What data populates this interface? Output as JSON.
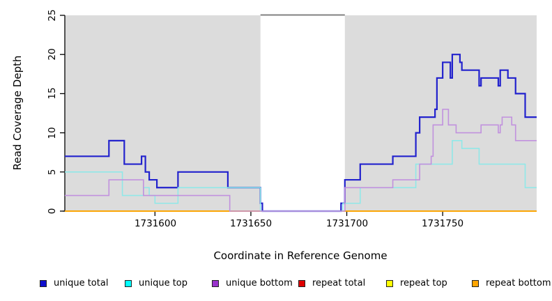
{
  "y_axis": {
    "title": "Read Coverage Depth",
    "tick_labels": [
      "0",
      "5",
      "10",
      "15",
      "20",
      "25"
    ],
    "tick_values": [
      0,
      5,
      10,
      15,
      20,
      25
    ]
  },
  "x_axis": {
    "title": "Coordinate in Reference Genome",
    "tick_labels": [
      "1731600",
      "1731650",
      "1731700",
      "1731750"
    ],
    "tick_values": [
      1731600,
      1731650,
      1731700,
      1731750
    ]
  },
  "legend": [
    {
      "label": "unique total",
      "color": "#0F0FCD"
    },
    {
      "label": "unique top",
      "color": "#00FFFF"
    },
    {
      "label": "unique bottom",
      "color": "#9932CC"
    },
    {
      "label": "repeat total",
      "color": "#DF0000"
    },
    {
      "label": "repeat top",
      "color": "#FFFF00"
    },
    {
      "label": "repeat bottom",
      "color": "#FFA500"
    }
  ],
  "colors": {
    "panel_shading": "#DCDCDC",
    "gap_top_border": "#808080",
    "axis": "#000000"
  },
  "chart_data": {
    "type": "line",
    "subtype": "step-coverage",
    "title": "",
    "xlabel": "Coordinate in Reference Genome",
    "ylabel": "Read Coverage Depth",
    "x_range": [
      1731553,
      1731799
    ],
    "y_range": [
      0,
      25
    ],
    "grid": false,
    "legend_position": "bottom",
    "shaded_regions": [
      [
        1731553,
        1731655
      ],
      [
        1731699,
        1731799
      ]
    ],
    "unshaded_gap": [
      1731655,
      1731699
    ],
    "series": [
      {
        "name": "repeat total",
        "color": "#CC0000",
        "width": 1.6,
        "steps": [
          [
            1731553,
            0
          ]
        ],
        "x_end": 1731799
      },
      {
        "name": "repeat top",
        "color": "#FFFF00",
        "width": 1.6,
        "steps": [
          [
            1731553,
            0
          ]
        ],
        "x_end": 1731799
      },
      {
        "name": "repeat bottom",
        "color": "#FFA500",
        "width": 1.8,
        "steps": [
          [
            1731553,
            0
          ]
        ],
        "x_end": 1731799
      },
      {
        "name": "unique total",
        "color": "#2222CD",
        "width": 2.2,
        "steps": [
          [
            1731553,
            7
          ],
          [
            1731576,
            9
          ],
          [
            1731584,
            6
          ],
          [
            1731593,
            7
          ],
          [
            1731595,
            5
          ],
          [
            1731597,
            4
          ],
          [
            1731601,
            3
          ],
          [
            1731612,
            5
          ],
          [
            1731638,
            3
          ],
          [
            1731655,
            1
          ],
          [
            1731656,
            0
          ],
          [
            1731697,
            1
          ],
          [
            1731699,
            4
          ],
          [
            1731707,
            6
          ],
          [
            1731724,
            7
          ],
          [
            1731736,
            10
          ],
          [
            1731738,
            12
          ],
          [
            1731746,
            13
          ],
          [
            1731747,
            17
          ],
          [
            1731750,
            19
          ],
          [
            1731754,
            17
          ],
          [
            1731755,
            20
          ],
          [
            1731759,
            19
          ],
          [
            1731760,
            18
          ],
          [
            1731769,
            16
          ],
          [
            1731770,
            17
          ],
          [
            1731779,
            16
          ],
          [
            1731780,
            18
          ],
          [
            1731784,
            17
          ],
          [
            1731788,
            15
          ],
          [
            1731793,
            12
          ]
        ],
        "x_end": 1731799
      },
      {
        "name": "unique top",
        "color": "#90E8E8",
        "width": 1.6,
        "steps": [
          [
            1731553,
            5
          ],
          [
            1731583,
            2
          ],
          [
            1731594,
            3
          ],
          [
            1731597,
            2
          ],
          [
            1731600,
            1
          ],
          [
            1731612,
            3
          ],
          [
            1731655,
            0
          ],
          [
            1731698,
            1
          ],
          [
            1731707,
            3
          ],
          [
            1731736,
            6
          ],
          [
            1731755,
            9
          ],
          [
            1731760,
            8
          ],
          [
            1731769,
            6
          ],
          [
            1731793,
            3
          ]
        ],
        "x_end": 1731799
      },
      {
        "name": "unique bottom",
        "color": "#C191DE",
        "width": 1.6,
        "steps": [
          [
            1731553,
            2
          ],
          [
            1731576,
            4
          ],
          [
            1731594,
            2
          ],
          [
            1731639,
            0
          ],
          [
            1731699,
            3
          ],
          [
            1731724,
            4
          ],
          [
            1731738,
            6
          ],
          [
            1731744,
            7
          ],
          [
            1731745,
            11
          ],
          [
            1731750,
            13
          ],
          [
            1731753,
            11
          ],
          [
            1731757,
            10
          ],
          [
            1731770,
            11
          ],
          [
            1731779,
            10
          ],
          [
            1731780,
            11
          ],
          [
            1731781,
            12
          ],
          [
            1731786,
            11
          ],
          [
            1731788,
            9
          ]
        ],
        "x_end": 1731799
      }
    ]
  }
}
